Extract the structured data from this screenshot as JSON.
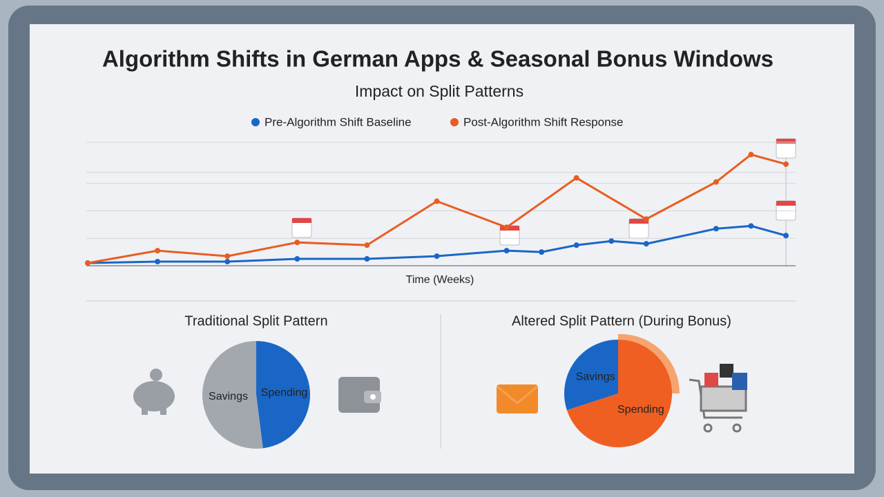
{
  "chart_data": [
    {
      "type": "line",
      "title": "Algorithm Shifts in German Apps & Seasonal Bonus Windows",
      "subtitle": "Impact on Split Patterns",
      "x_label": "Time (Weeks)",
      "xlim": [
        0,
        20
      ],
      "ylim": [
        0,
        45
      ],
      "grid_lines": [
        10,
        20,
        30,
        34,
        45
      ],
      "series": [
        {
          "name": "Pre-Algorithm Shift Baseline",
          "color": "#1a66c6",
          "x": [
            0,
            2,
            4,
            6,
            8,
            10,
            12,
            13,
            14,
            15,
            16,
            18,
            19,
            20
          ],
          "values": [
            1,
            1.5,
            1.5,
            2.5,
            2.5,
            3.5,
            5.5,
            5,
            7.5,
            9,
            8,
            13.5,
            14.5,
            11
          ]
        },
        {
          "name": "Post-Algorithm Shift Response",
          "color": "#e85d22",
          "x": [
            0,
            2,
            4,
            6,
            8,
            10,
            12,
            14,
            16,
            18,
            19,
            20
          ],
          "values": [
            1,
            5.5,
            3.5,
            8.5,
            7.5,
            23.5,
            14,
            32,
            17,
            30.5,
            40.5,
            37
          ]
        }
      ]
    },
    {
      "type": "pie",
      "title": "Traditional Split Pattern",
      "categories": [
        "Spending",
        "Savings"
      ],
      "values": [
        48,
        52
      ],
      "colors": [
        "#1a66c6",
        "#a3a7ae"
      ]
    },
    {
      "type": "pie",
      "title": "Altered Split Pattern (During Bonus)",
      "categories": [
        "Spending",
        "Savings"
      ],
      "values": [
        70,
        30
      ],
      "colors": [
        "#ef5f22",
        "#1a66c6"
      ]
    }
  ]
}
